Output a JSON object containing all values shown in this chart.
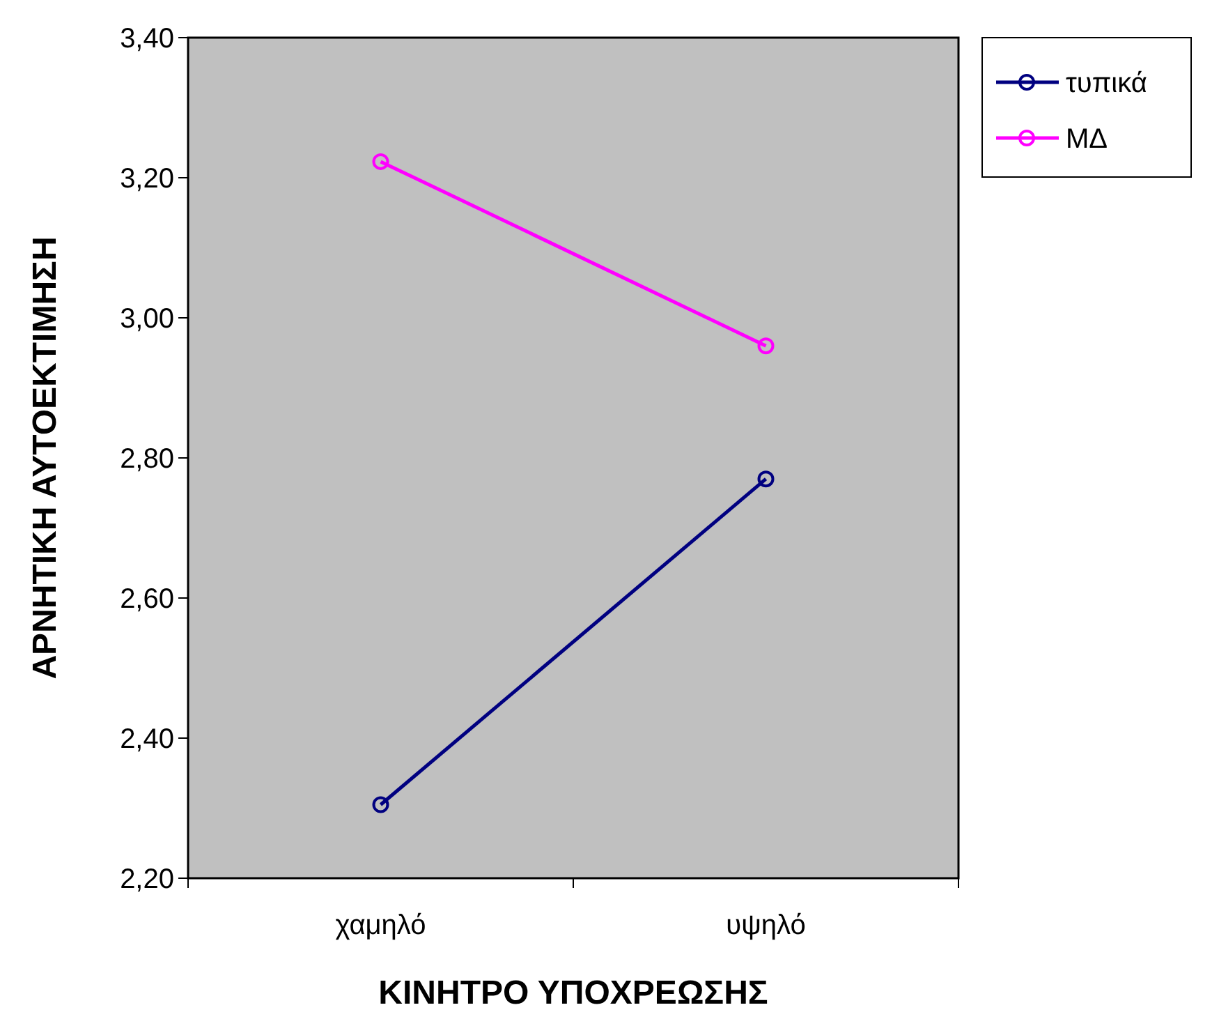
{
  "chart_data": {
    "type": "line",
    "xlabel": "ΚΙΝΗΤΡΟ ΥΠΟΧΡΕΩΣΗΣ",
    "ylabel": "ΑΡΝΗΤΙΚΗ ΑΥΤΟΕΚΤΙΜΗΣΗ",
    "categories": [
      "χαμηλό",
      "υψηλό"
    ],
    "series": [
      {
        "name": "τυπικά",
        "color": "#000080",
        "values": [
          2.305,
          2.77
        ]
      },
      {
        "name": "ΜΔ",
        "color": "#ff00ff",
        "values": [
          3.223,
          2.96
        ]
      }
    ],
    "ylim": [
      2.2,
      3.4
    ],
    "yticks": [
      {
        "value": 2.2,
        "label": "2,20"
      },
      {
        "value": 2.4,
        "label": "2,40"
      },
      {
        "value": 2.6,
        "label": "2,60"
      },
      {
        "value": 2.8,
        "label": "2,80"
      },
      {
        "value": 3.0,
        "label": "3,00"
      },
      {
        "value": 3.2,
        "label": "3,20"
      },
      {
        "value": 3.4,
        "label": "3,40"
      }
    ],
    "grid": false,
    "legend": "right",
    "marker": "circle",
    "line_style": "solid"
  }
}
